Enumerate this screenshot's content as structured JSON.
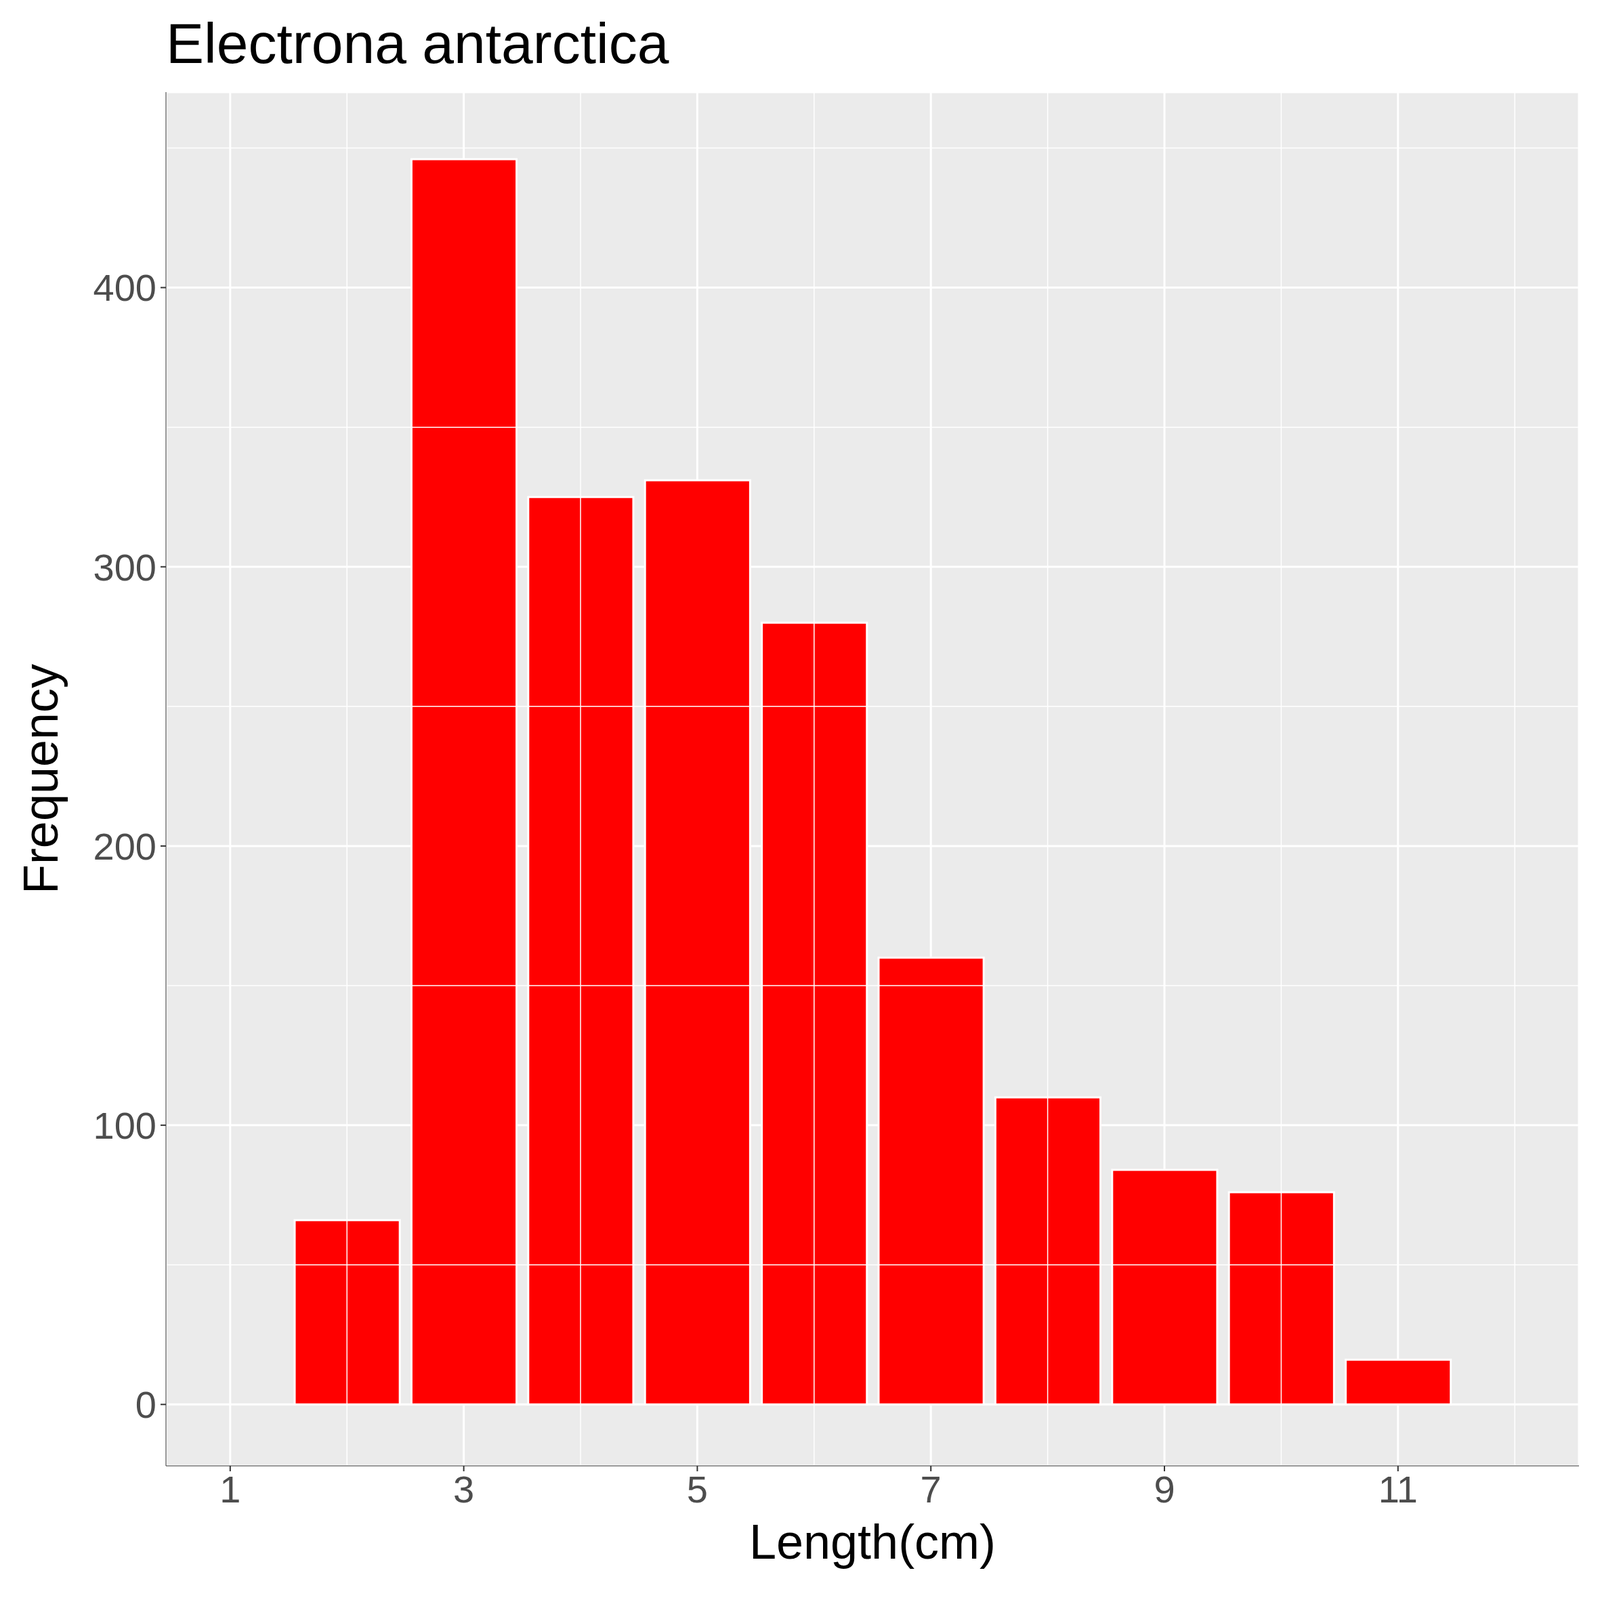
{
  "chart_data": {
    "type": "histogram",
    "title": "Electrona antarctica",
    "x_label": "Length(cm)",
    "y_label": "Frequency",
    "bins": [
      1.5,
      2.5,
      3.5,
      4.5,
      5.5,
      6.5,
      7.5,
      8.5,
      9.5,
      10.5,
      11.5
    ],
    "values": [
      66,
      446,
      325,
      331,
      280,
      160,
      110,
      84,
      76,
      16
    ],
    "color": "#FF0000",
    "xlim": [
      0.45,
      12.55
    ],
    "ylim": [
      -22,
      470
    ],
    "xticks": [
      1,
      3,
      5,
      7,
      9,
      11
    ],
    "yticks": [
      0,
      100,
      200,
      300,
      400
    ],
    "grid": true
  }
}
